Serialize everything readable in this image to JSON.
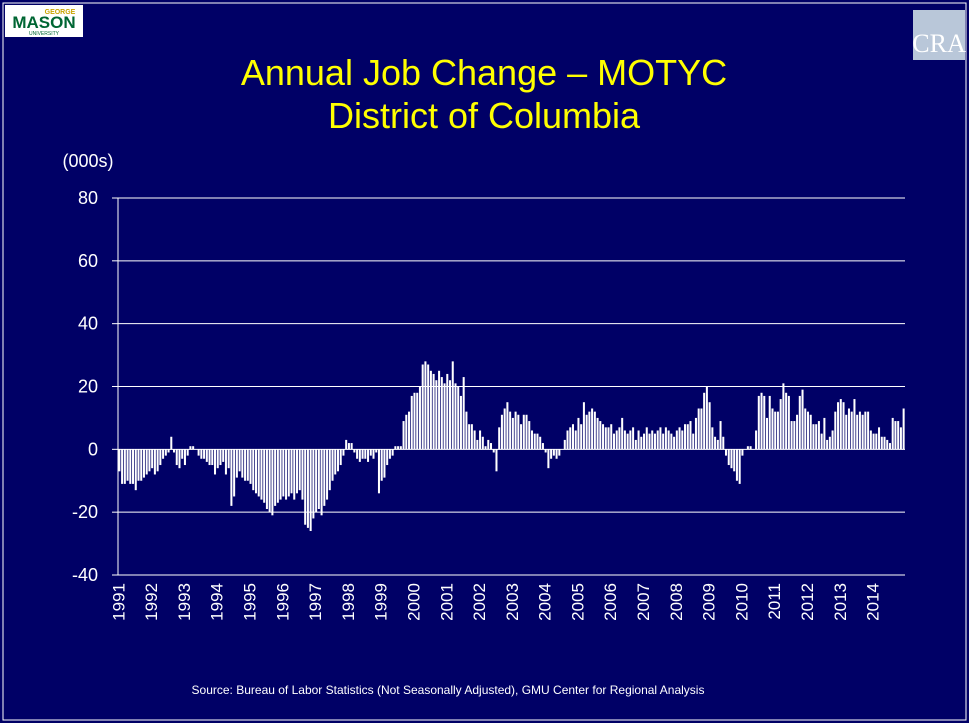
{
  "logos": {
    "left": [
      "GEORGE",
      "MASON",
      "UNIVERSITY"
    ],
    "right": "CRA"
  },
  "chart_data": {
    "type": "bar",
    "title": "Annual Job Change – MOTYC",
    "subtitle": "District of Columbia",
    "y_label": "(000s)",
    "source": "Source: Bureau of Labor Statistics (Not Seasonally Adjusted), GMU Center for Regional Analysis",
    "color": "#ffffff",
    "grid": true,
    "ylim": [
      -40,
      80
    ],
    "yticks": [
      -40,
      -20,
      0,
      20,
      40,
      60,
      80
    ],
    "categories": [
      "1991",
      null,
      null,
      null,
      null,
      null,
      null,
      null,
      null,
      null,
      null,
      null,
      "1992",
      null,
      null,
      null,
      null,
      null,
      null,
      null,
      null,
      null,
      null,
      null,
      "1993",
      null,
      null,
      null,
      null,
      null,
      null,
      null,
      null,
      null,
      null,
      null,
      "1994",
      null,
      null,
      null,
      null,
      null,
      null,
      null,
      null,
      null,
      null,
      null,
      "1995",
      null,
      null,
      null,
      null,
      null,
      null,
      null,
      null,
      null,
      null,
      null,
      "1996",
      null,
      null,
      null,
      null,
      null,
      null,
      null,
      null,
      null,
      null,
      null,
      "1997",
      null,
      null,
      null,
      null,
      null,
      null,
      null,
      null,
      null,
      null,
      null,
      "1998",
      null,
      null,
      null,
      null,
      null,
      null,
      null,
      null,
      null,
      null,
      null,
      "1999",
      null,
      null,
      null,
      null,
      null,
      null,
      null,
      null,
      null,
      null,
      null,
      "2000",
      null,
      null,
      null,
      null,
      null,
      null,
      null,
      null,
      null,
      null,
      null,
      "2001",
      null,
      null,
      null,
      null,
      null,
      null,
      null,
      null,
      null,
      null,
      null,
      "2002",
      null,
      null,
      null,
      null,
      null,
      null,
      null,
      null,
      null,
      null,
      null,
      "2003",
      null,
      null,
      null,
      null,
      null,
      null,
      null,
      null,
      null,
      null,
      null,
      "2004",
      null,
      null,
      null,
      null,
      null,
      null,
      null,
      null,
      null,
      null,
      null,
      "2005",
      null,
      null,
      null,
      null,
      null,
      null,
      null,
      null,
      null,
      null,
      null,
      "2006",
      null,
      null,
      null,
      null,
      null,
      null,
      null,
      null,
      null,
      null,
      null,
      "2007",
      null,
      null,
      null,
      null,
      null,
      null,
      null,
      null,
      null,
      null,
      null,
      "2008",
      null,
      null,
      null,
      null,
      null,
      null,
      null,
      null,
      null,
      null,
      null,
      "2009",
      null,
      null,
      null,
      null,
      null,
      null,
      null,
      null,
      null,
      null,
      null,
      "2010",
      null,
      null,
      null,
      null,
      null,
      null,
      null,
      null,
      null,
      null,
      null,
      "2011",
      null,
      null,
      null,
      null,
      null,
      null,
      null,
      null,
      null,
      null,
      null,
      "2012",
      null,
      null,
      null,
      null,
      null,
      null,
      null,
      null,
      null,
      null,
      null,
      "2013",
      null,
      null,
      null,
      null,
      null,
      null,
      null,
      null,
      null,
      null,
      null,
      "2014",
      null,
      null,
      null,
      null,
      null,
      null,
      null,
      null,
      null,
      null,
      null
    ],
    "values": [
      -7,
      -11,
      -11,
      -10,
      -11,
      -11,
      -13,
      -10,
      -10,
      -9,
      -8,
      -7,
      -6,
      -8,
      -7,
      -5,
      -3,
      -2,
      -1,
      4,
      -1,
      -5,
      -6,
      -3,
      -5,
      -2,
      1,
      1,
      0,
      -2,
      -3,
      -3,
      -4,
      -5,
      -5,
      -8,
      -6,
      -5,
      -4,
      -8,
      -6,
      -18,
      -15,
      -9,
      -7,
      -9,
      -10,
      -10,
      -11,
      -13,
      -14,
      -15,
      -16,
      -17,
      -19,
      -20,
      -21,
      -18,
      -17,
      -16,
      -15,
      -16,
      -15,
      -14,
      -16,
      -14,
      -13,
      -16,
      -24,
      -25,
      -26,
      -22,
      -20,
      -19,
      -21,
      -18,
      -16,
      -13,
      -10,
      -8,
      -7,
      -5,
      -2,
      3,
      2,
      2,
      -1,
      -3,
      -4,
      -3,
      -3,
      -4,
      -2,
      -3,
      -1,
      -14,
      -10,
      -9,
      -5,
      -3,
      -2,
      1,
      1,
      1,
      9,
      11,
      12,
      17,
      18,
      18,
      20,
      27,
      28,
      27,
      25,
      24,
      22,
      25,
      23,
      21,
      24,
      22,
      28,
      21,
      20,
      17,
      23,
      12,
      8,
      8,
      6,
      3,
      6,
      4,
      1,
      3,
      2,
      -1,
      -7,
      7,
      11,
      13,
      15,
      12,
      10,
      12,
      11,
      8,
      11,
      11,
      9,
      6,
      5,
      5,
      4,
      2,
      -1,
      -6,
      -3,
      -2,
      -3,
      -2,
      0,
      3,
      6,
      7,
      8,
      6,
      10,
      8,
      15,
      11,
      12,
      13,
      12,
      10,
      9,
      8,
      7,
      7,
      8,
      5,
      6,
      7,
      10,
      6,
      5,
      6,
      7,
      3,
      6,
      4,
      5,
      7,
      5,
      6,
      5,
      6,
      7,
      5,
      7,
      6,
      5,
      4,
      6,
      7,
      6,
      8,
      8,
      9,
      5,
      10,
      13,
      13,
      18,
      20,
      15,
      7,
      4,
      3,
      9,
      4,
      -2,
      -5,
      -6,
      -7,
      -10,
      -11,
      -2,
      0,
      1,
      1,
      0,
      6,
      17,
      18,
      17,
      10,
      17,
      13,
      12,
      12,
      16,
      21,
      18,
      17,
      9,
      9,
      11,
      17,
      19,
      13,
      12,
      11,
      8,
      8,
      9,
      5,
      10,
      3,
      4,
      6,
      12,
      15,
      16,
      15,
      11,
      13,
      12,
      16,
      11,
      12,
      11,
      12,
      12,
      6,
      5,
      5,
      7,
      4,
      4,
      3,
      2,
      10,
      9,
      9,
      7,
      13
    ]
  }
}
